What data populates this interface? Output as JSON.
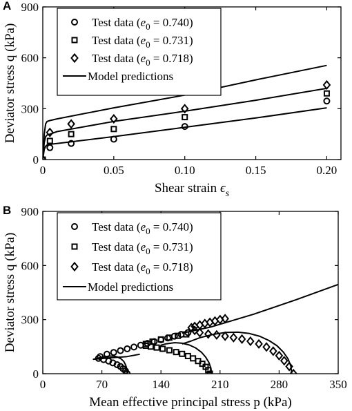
{
  "chart_data": [
    {
      "panel": "A",
      "type": "scatter",
      "xlabel": "Shear strain",
      "xlabel_symbol": "ϵ",
      "xlabel_sub": "s",
      "ylabel": "Deviator stress q (kPa)",
      "xlim": [
        0,
        0.21
      ],
      "ylim": [
        0,
        900
      ],
      "xticks": [
        0,
        0.05,
        0.1,
        0.15,
        0.2
      ],
      "xtick_labels": [
        "0",
        "0.05",
        "0.10",
        "0.15",
        "0.20"
      ],
      "yticks": [
        0,
        300,
        600,
        900
      ],
      "ytick_labels": [
        "0",
        "300",
        "600",
        "900"
      ],
      "legend_position": "top-left",
      "series": [
        {
          "name": "Test data (e0 = 0.740)",
          "name_parts": [
            "Test data (",
            "e",
            "0",
            " = 0.740)"
          ],
          "marker": "circle",
          "x": [
            0,
            0.005,
            0.02,
            0.05,
            0.1,
            0.2
          ],
          "y": [
            0,
            70,
            95,
            120,
            195,
            345
          ]
        },
        {
          "name": "Test data (e0 = 0.731)",
          "name_parts": [
            "Test data (",
            "e",
            "0",
            " = 0.731)"
          ],
          "marker": "square",
          "x": [
            0,
            0.005,
            0.02,
            0.05,
            0.1,
            0.2
          ],
          "y": [
            0,
            110,
            150,
            180,
            250,
            390
          ]
        },
        {
          "name": "Test data (e0 = 0.718)",
          "name_parts": [
            "Test data (",
            "e",
            "0",
            " = 0.718)"
          ],
          "marker": "diamond",
          "x": [
            0,
            0.005,
            0.02,
            0.05,
            0.1,
            0.2
          ],
          "y": [
            0,
            160,
            210,
            240,
            300,
            440
          ]
        },
        {
          "name": "Model predictions",
          "marker": "line",
          "lines": [
            {
              "x": [
                0,
                0.001,
                0.002,
                0.003,
                0.005,
                0.01,
                0.05,
                0.1,
                0.15,
                0.2
              ],
              "y": [
                0,
                60,
                78,
                86,
                90,
                95,
                135,
                190,
                245,
                305
              ]
            },
            {
              "x": [
                0,
                0.001,
                0.002,
                0.003,
                0.005,
                0.01,
                0.05,
                0.1,
                0.15,
                0.2
              ],
              "y": [
                0,
                100,
                135,
                145,
                150,
                165,
                225,
                285,
                350,
                420
              ]
            },
            {
              "x": [
                0,
                0.001,
                0.002,
                0.003,
                0.005,
                0.01,
                0.05,
                0.1,
                0.15,
                0.2
              ],
              "y": [
                0,
                150,
                210,
                225,
                230,
                240,
                305,
                380,
                470,
                555
              ]
            }
          ]
        }
      ]
    },
    {
      "panel": "B",
      "type": "scatter",
      "xlabel": "Mean effective principal stress p (kPa)",
      "ylabel": "Deviator stress q (kPa)",
      "xlim": [
        0,
        350
      ],
      "ylim": [
        0,
        900
      ],
      "xticks": [
        0,
        70,
        140,
        210,
        280,
        350
      ],
      "xtick_labels": [
        "0",
        "70",
        "140",
        "210",
        "280",
        "350"
      ],
      "yticks": [
        0,
        300,
        600,
        900
      ],
      "ytick_labels": [
        "0",
        "300",
        "600",
        "900"
      ],
      "legend_position": "top-left",
      "series": [
        {
          "name": "Test data (e0 = 0.740)",
          "name_parts": [
            "Test data (",
            "e",
            "0",
            " = 0.740)"
          ],
          "marker": "circle",
          "x": [
            100,
            98,
            95,
            92,
            88,
            83,
            78,
            72,
            66,
            68,
            76,
            84,
            92,
            100,
            108,
            116,
            124,
            132,
            140,
            148,
            156,
            164,
            172
          ],
          "y": [
            0,
            15,
            28,
            40,
            50,
            60,
            70,
            78,
            85,
            95,
            108,
            118,
            128,
            138,
            148,
            158,
            168,
            178,
            188,
            198,
            208,
            218,
            228
          ]
        },
        {
          "name": "Test data (e0 = 0.731)",
          "name_parts": [
            "Test data (",
            "e",
            "0",
            " = 0.731)"
          ],
          "marker": "square",
          "x": [
            198,
            196,
            193,
            189,
            184,
            178,
            172,
            165,
            158,
            150,
            142,
            135,
            128,
            122,
            122,
            130,
            140,
            150,
            160,
            170
          ],
          "y": [
            0,
            20,
            38,
            55,
            70,
            85,
            98,
            110,
            120,
            130,
            138,
            145,
            150,
            155,
            165,
            178,
            190,
            200,
            210,
            218
          ]
        },
        {
          "name": "Test data (e0 = 0.718)",
          "name_parts": [
            "Test data (",
            "e",
            "0",
            " = 0.718)"
          ],
          "marker": "diamond",
          "x": [
            297,
            292,
            286,
            280,
            273,
            265,
            256,
            246,
            236,
            226,
            216,
            206,
            196,
            186,
            180,
            176,
            180,
            186,
            192,
            198,
            204,
            210,
            216
          ],
          "y": [
            0,
            40,
            72,
            100,
            125,
            148,
            165,
            180,
            192,
            200,
            208,
            215,
            220,
            228,
            240,
            255,
            262,
            270,
            278,
            285,
            292,
            300,
            305
          ]
        },
        {
          "name": "Model predictions",
          "marker": "line",
          "lines": [
            {
              "x": [
                100,
                99.6,
                98.2,
                95.9,
                92.5,
                88.3,
                83.2,
                77.3,
                70.8,
                60,
                80,
                100,
                115
              ],
              "y": [
                0,
                25,
                48,
                68,
                83,
                93,
                98,
                97,
                92,
                80,
                88,
                95,
                108
              ]
            },
            {
              "x": [
                200,
                199.2,
                196.8,
                193,
                187.9,
                181.4,
                173.8,
                165.3,
                156,
                146.3,
                140,
                140
              ],
              "y": [
                0,
                30,
                62,
                92,
                119,
                142,
                159,
                169,
                172,
                166,
                158,
                150
              ]
            },
            {
              "x": [
                295,
                293.9,
                290.5,
                285,
                277.5,
                268.1,
                257.2,
                244.8,
                231.3,
                216.8,
                201.7,
                186.3,
                175,
                165
              ],
              "y": [
                0,
                42,
                83,
                120,
                155,
                184,
                207,
                223,
                230,
                229,
                218,
                200,
                180,
                165
              ]
            },
            {
              "x": [
                165,
                200,
                250,
                300,
                350
              ],
              "y": [
                225,
                260,
                330,
                410,
                495
              ]
            }
          ]
        }
      ]
    }
  ]
}
